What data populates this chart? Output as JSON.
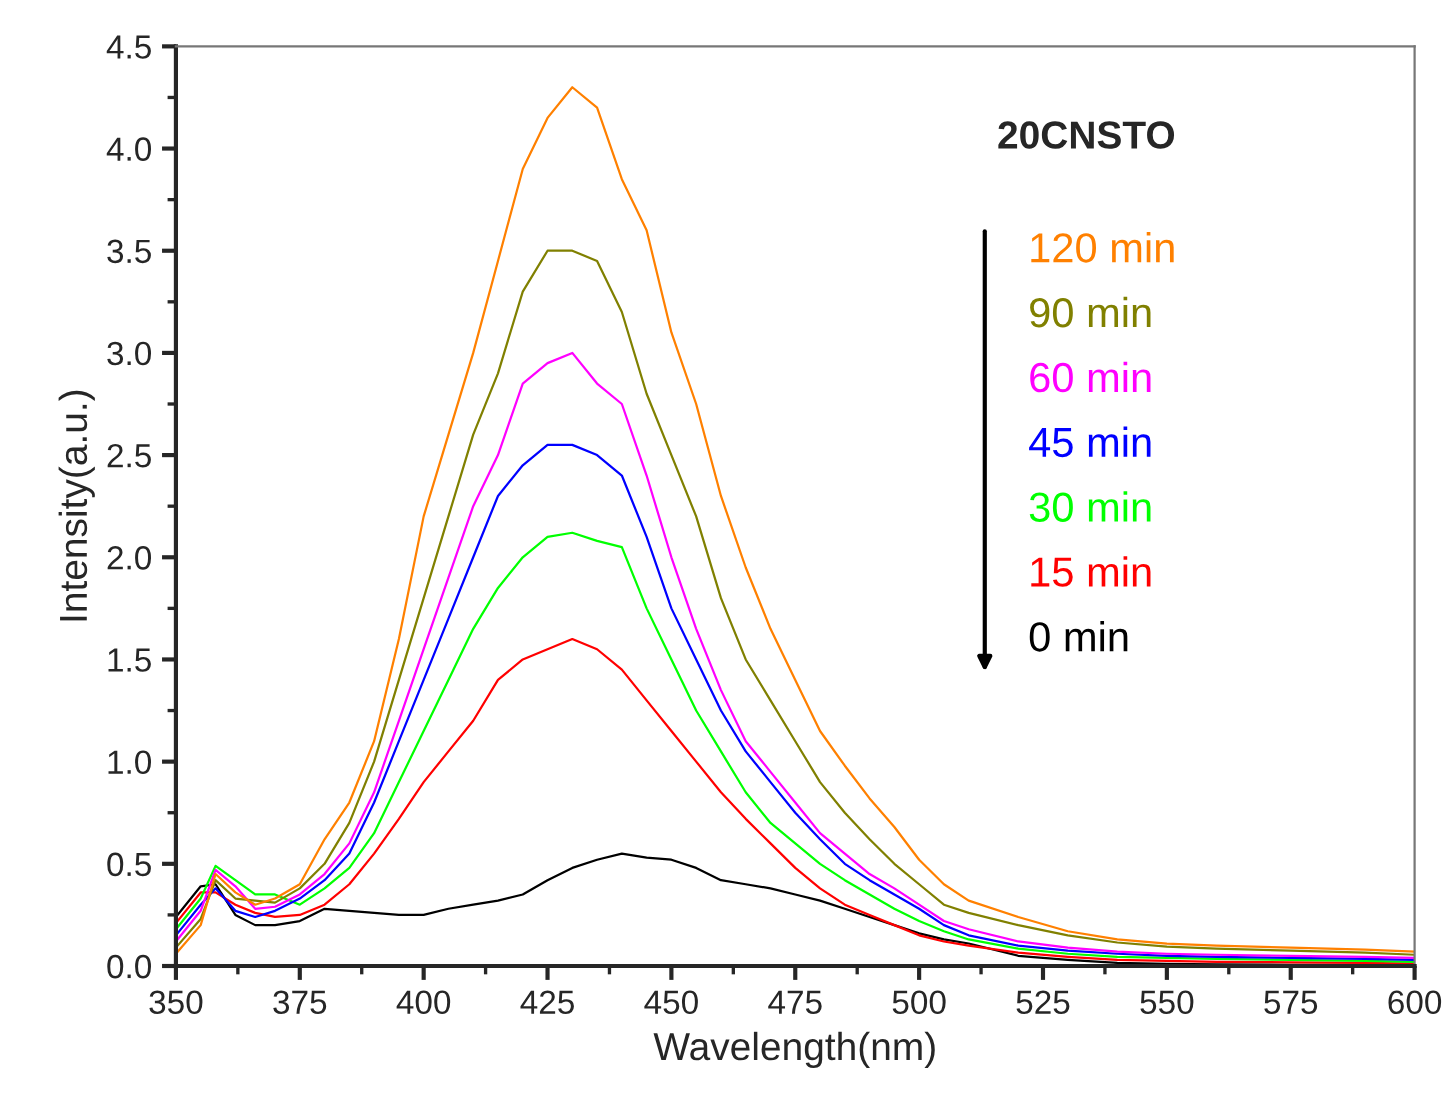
{
  "chart_data": {
    "type": "line",
    "xlabel": "Wavelength(nm)",
    "ylabel": "Intensity(a.u.)",
    "annotations": [
      "20CNSTO"
    ],
    "legend": "right",
    "grid": false,
    "x": [
      350,
      355,
      358,
      362,
      366,
      370,
      375,
      380,
      385,
      390,
      395,
      400,
      405,
      410,
      415,
      420,
      425,
      430,
      435,
      440,
      445,
      450,
      455,
      460,
      465,
      470,
      475,
      480,
      485,
      490,
      495,
      500,
      505,
      510,
      520,
      530,
      540,
      550,
      560,
      575,
      590,
      600
    ],
    "xlim": [
      350,
      600
    ],
    "ylim": [
      0,
      4.5
    ],
    "xticks": [
      350,
      375,
      400,
      425,
      450,
      475,
      500,
      525,
      550,
      575,
      600
    ],
    "yticks": [
      {
        "value": 0,
        "label": "0.0"
      },
      {
        "value": 0.5,
        "label": "0.5"
      },
      {
        "value": 1,
        "label": "1.0"
      },
      {
        "value": 1.5,
        "label": "1.5"
      },
      {
        "value": 2,
        "label": "2.0"
      },
      {
        "value": 2.5,
        "label": "2.5"
      },
      {
        "value": 3,
        "label": "3.0"
      },
      {
        "value": 3.5,
        "label": "3.5"
      },
      {
        "value": 4,
        "label": "4.0"
      },
      {
        "value": 4.5,
        "label": "4.5"
      }
    ],
    "series": [
      {
        "name": "120 min",
        "color": "#ff8000",
        "values": [
          0.06,
          0.2,
          0.45,
          0.36,
          0.3,
          0.33,
          0.4,
          0.62,
          0.8,
          1.1,
          1.6,
          2.2,
          2.6,
          3.0,
          3.45,
          3.9,
          4.15,
          4.3,
          4.2,
          3.85,
          3.6,
          3.1,
          2.75,
          2.3,
          1.95,
          1.65,
          1.4,
          1.15,
          0.98,
          0.82,
          0.68,
          0.52,
          0.4,
          0.32,
          0.24,
          0.17,
          0.13,
          0.11,
          0.1,
          0.09,
          0.08,
          0.07
        ]
      },
      {
        "name": "90 min",
        "color": "#808000",
        "values": [
          0.09,
          0.23,
          0.42,
          0.33,
          0.32,
          0.31,
          0.38,
          0.5,
          0.7,
          1.0,
          1.4,
          1.8,
          2.2,
          2.6,
          2.9,
          3.3,
          3.5,
          3.5,
          3.45,
          3.2,
          2.8,
          2.5,
          2.2,
          1.8,
          1.5,
          1.3,
          1.1,
          0.9,
          0.75,
          0.62,
          0.5,
          0.4,
          0.3,
          0.26,
          0.2,
          0.15,
          0.115,
          0.095,
          0.085,
          0.075,
          0.065,
          0.055
        ]
      },
      {
        "name": "60 min",
        "color": "#ff00ff",
        "values": [
          0.12,
          0.27,
          0.47,
          0.39,
          0.28,
          0.29,
          0.35,
          0.45,
          0.6,
          0.85,
          1.2,
          1.55,
          1.9,
          2.25,
          2.5,
          2.85,
          2.95,
          3.0,
          2.85,
          2.75,
          2.4,
          2.0,
          1.65,
          1.35,
          1.1,
          0.95,
          0.8,
          0.65,
          0.55,
          0.45,
          0.38,
          0.3,
          0.22,
          0.18,
          0.12,
          0.09,
          0.07,
          0.06,
          0.055,
          0.05,
          0.045,
          0.04
        ]
      },
      {
        "name": "45 min",
        "color": "#0000ff",
        "values": [
          0.15,
          0.3,
          0.38,
          0.27,
          0.24,
          0.27,
          0.33,
          0.42,
          0.55,
          0.8,
          1.1,
          1.4,
          1.7,
          2.0,
          2.3,
          2.45,
          2.55,
          2.55,
          2.5,
          2.4,
          2.1,
          1.75,
          1.5,
          1.25,
          1.05,
          0.9,
          0.75,
          0.62,
          0.5,
          0.42,
          0.35,
          0.28,
          0.2,
          0.15,
          0.1,
          0.075,
          0.06,
          0.05,
          0.045,
          0.04,
          0.035,
          0.03
        ]
      },
      {
        "name": "30 min",
        "color": "#00ff00",
        "values": [
          0.18,
          0.33,
          0.49,
          0.42,
          0.35,
          0.35,
          0.3,
          0.38,
          0.48,
          0.65,
          0.9,
          1.15,
          1.4,
          1.65,
          1.85,
          2.0,
          2.1,
          2.12,
          2.08,
          2.05,
          1.75,
          1.5,
          1.25,
          1.05,
          0.85,
          0.7,
          0.6,
          0.5,
          0.42,
          0.35,
          0.28,
          0.22,
          0.17,
          0.13,
          0.085,
          0.06,
          0.045,
          0.04,
          0.035,
          0.03,
          0.025,
          0.02
        ]
      },
      {
        "name": "15 min",
        "color": "#ff0000",
        "values": [
          0.21,
          0.36,
          0.36,
          0.3,
          0.26,
          0.24,
          0.25,
          0.3,
          0.4,
          0.55,
          0.72,
          0.9,
          1.05,
          1.2,
          1.4,
          1.5,
          1.55,
          1.6,
          1.55,
          1.45,
          1.3,
          1.15,
          1.0,
          0.85,
          0.72,
          0.6,
          0.48,
          0.38,
          0.3,
          0.25,
          0.2,
          0.15,
          0.12,
          0.1,
          0.065,
          0.045,
          0.03,
          0.025,
          0.02,
          0.018,
          0.015,
          0.012
        ]
      },
      {
        "name": "0 min",
        "color": "#000000",
        "values": [
          0.24,
          0.39,
          0.4,
          0.25,
          0.2,
          0.2,
          0.22,
          0.28,
          0.27,
          0.26,
          0.25,
          0.25,
          0.28,
          0.3,
          0.32,
          0.35,
          0.42,
          0.48,
          0.52,
          0.55,
          0.53,
          0.52,
          0.48,
          0.42,
          0.4,
          0.38,
          0.35,
          0.32,
          0.28,
          0.24,
          0.2,
          0.16,
          0.13,
          0.11,
          0.05,
          0.03,
          0.015,
          0.01,
          0.008,
          0.006,
          0.005,
          0.004
        ]
      }
    ]
  }
}
